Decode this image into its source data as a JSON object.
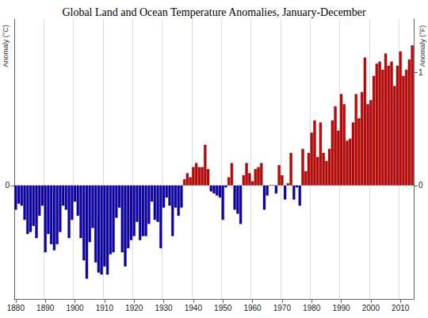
{
  "chart_data": {
    "type": "bar",
    "title": "Global Land and Ocean Temperature Anomalies, January-December",
    "y_label": "Anomaly (°C)",
    "y2_label": "Anomaly (°F)",
    "categories": [
      1880,
      null,
      null,
      null,
      null,
      null,
      null,
      null,
      null,
      null,
      1890,
      null,
      null,
      null,
      null,
      null,
      null,
      null,
      null,
      null,
      1900,
      null,
      null,
      null,
      null,
      null,
      null,
      null,
      null,
      null,
      1910,
      null,
      null,
      null,
      null,
      null,
      null,
      null,
      null,
      null,
      1920,
      null,
      null,
      null,
      null,
      null,
      null,
      null,
      null,
      null,
      1930,
      null,
      null,
      null,
      null,
      null,
      null,
      null,
      null,
      null,
      1940,
      null,
      null,
      null,
      null,
      null,
      null,
      null,
      null,
      null,
      1950,
      null,
      null,
      null,
      null,
      null,
      null,
      null,
      null,
      null,
      1960,
      null,
      null,
      null,
      null,
      null,
      null,
      null,
      null,
      null,
      1970,
      null,
      null,
      null,
      null,
      null,
      null,
      null,
      null,
      null,
      1980,
      null,
      null,
      null,
      null,
      null,
      null,
      null,
      null,
      null,
      1990,
      null,
      null,
      null,
      null,
      null,
      null,
      null,
      null,
      null,
      2000,
      null,
      null,
      null,
      null,
      null,
      null,
      null,
      null,
      null,
      2010,
      null,
      null,
      null,
      null
    ],
    "values": [
      -0.12,
      -0.09,
      -0.1,
      -0.17,
      -0.24,
      -0.23,
      -0.2,
      -0.26,
      -0.15,
      -0.1,
      -0.33,
      -0.24,
      -0.29,
      -0.32,
      -0.29,
      -0.23,
      -0.1,
      -0.12,
      -0.26,
      -0.17,
      -0.08,
      -0.15,
      -0.26,
      -0.37,
      -0.46,
      -0.28,
      -0.21,
      -0.38,
      -0.43,
      -0.44,
      -0.4,
      -0.44,
      -0.34,
      -0.33,
      -0.16,
      -0.11,
      -0.33,
      -0.4,
      -0.31,
      -0.27,
      -0.25,
      -0.18,
      -0.27,
      -0.25,
      -0.25,
      -0.19,
      -0.08,
      -0.17,
      -0.18,
      -0.31,
      -0.11,
      -0.06,
      -0.1,
      -0.25,
      -0.11,
      -0.15,
      -0.11,
      0.03,
      0.06,
      0.04,
      0.09,
      0.11,
      0.09,
      0.09,
      0.2,
      0.08,
      -0.03,
      -0.04,
      -0.05,
      -0.06,
      -0.17,
      -0.01,
      0.04,
      0.11,
      -0.12,
      -0.14,
      -0.19,
      0.05,
      0.11,
      0.06,
      0.02,
      0.08,
      0.09,
      0.11,
      -0.12,
      -0.05,
      0.0,
      0.0,
      -0.04,
      0.1,
      0.05,
      -0.07,
      0.01,
      0.16,
      -0.07,
      -0.01,
      -0.1,
      0.18,
      0.07,
      0.16,
      0.26,
      0.32,
      0.14,
      0.31,
      0.16,
      0.12,
      0.18,
      0.32,
      0.39,
      0.27,
      0.45,
      0.4,
      0.22,
      0.23,
      0.31,
      0.45,
      0.33,
      0.46,
      0.63,
      0.4,
      0.42,
      0.54,
      0.6,
      0.61,
      0.57,
      0.65,
      0.59,
      0.61,
      0.49,
      0.59,
      0.66,
      0.54,
      0.57,
      0.62,
      0.69
    ],
    "colors": [
      "#0000cc",
      "#0000cc",
      "#0000cc",
      "#0000cc",
      "#0000cc",
      "#0000cc",
      "#0000cc",
      "#0000cc",
      "#0000cc",
      "#0000cc",
      "#0000cc",
      "#0000cc",
      "#0000cc",
      "#0000cc",
      "#0000cc",
      "#0000cc",
      "#0000cc",
      "#0000cc",
      "#0000cc",
      "#0000cc",
      "#0000cc",
      "#0000cc",
      "#0000cc",
      "#0000cc",
      "#0000cc",
      "#0000cc",
      "#0000cc",
      "#0000cc",
      "#0000cc",
      "#0000cc",
      "#0000cc",
      "#0000cc",
      "#0000cc",
      "#0000cc",
      "#0000cc",
      "#0000cc",
      "#0000cc",
      "#0000cc",
      "#0000cc",
      "#0000cc",
      "#0000cc",
      "#0000cc",
      "#0000cc",
      "#0000cc",
      "#0000cc",
      "#0000cc",
      "#0000cc",
      "#0000cc",
      "#0000cc",
      "#0000cc",
      "#0000cc",
      "#0000cc",
      "#0000cc",
      "#0000cc",
      "#0000cc",
      "#0000cc",
      "#0000cc",
      "#d40000",
      "#d40000",
      "#d40000",
      "#d40000",
      "#d40000",
      "#d40000",
      "#d40000",
      "#d40000",
      "#d40000",
      "#0000cc",
      "#0000cc",
      "#0000cc",
      "#0000cc",
      "#0000cc",
      "#0000cc",
      "#d40000",
      "#d40000",
      "#0000cc",
      "#0000cc",
      "#0000cc",
      "#d40000",
      "#d40000",
      "#d40000",
      "#d40000",
      "#d40000",
      "#d40000",
      "#d40000",
      "#0000cc",
      "#0000cc",
      "#d40000",
      "#d40000",
      "#0000cc",
      "#d40000",
      "#d40000",
      "#0000cc",
      "#d40000",
      "#d40000",
      "#0000cc",
      "#0000cc",
      "#0000cc",
      "#d40000",
      "#d40000",
      "#d40000",
      "#d40000",
      "#d40000",
      "#d40000",
      "#d40000",
      "#d40000",
      "#d40000",
      "#d40000",
      "#d40000",
      "#d40000",
      "#d40000",
      "#d40000",
      "#d40000",
      "#d40000",
      "#d40000",
      "#d40000",
      "#d40000",
      "#d40000",
      "#d40000",
      "#d40000",
      "#d40000",
      "#d40000",
      "#d40000",
      "#d40000",
      "#d40000",
      "#d40000",
      "#d40000",
      "#d40000",
      "#d40000",
      "#d40000",
      "#d40000",
      "#d40000",
      "#d40000",
      "#d40000",
      "#d40000",
      "#d40000"
    ],
    "ylim": [
      -0.56,
      0.82
    ],
    "yticks": [
      0
    ],
    "y2lim": [
      -1.008,
      1.476
    ],
    "y2ticks": [
      0,
      1
    ],
    "grid": true
  }
}
